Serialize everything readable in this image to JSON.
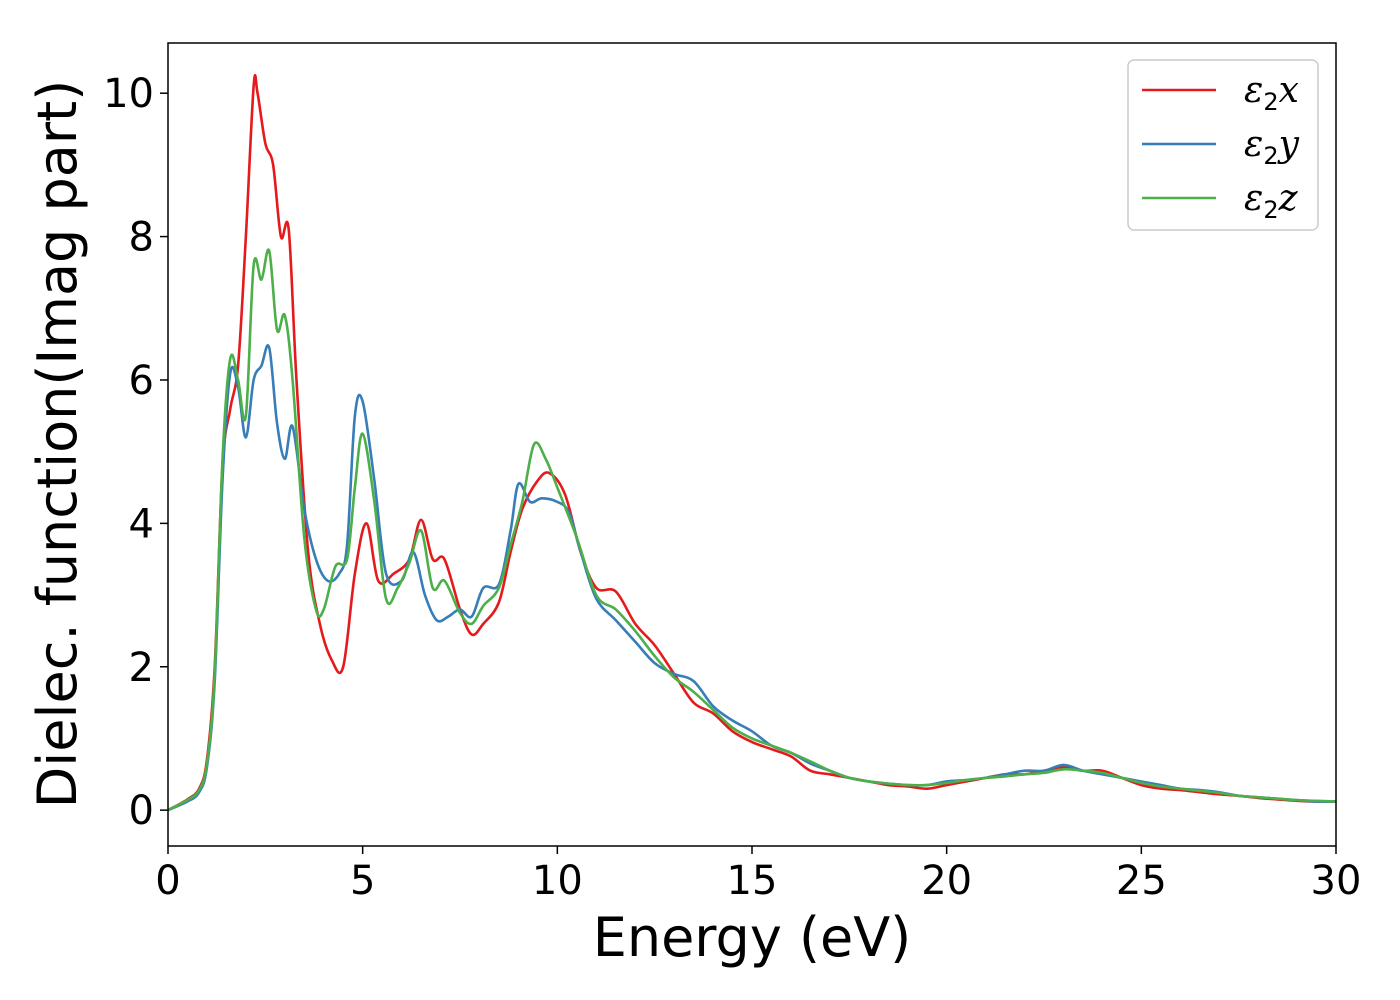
{
  "chart_data": {
    "type": "line",
    "xlabel": "Energy (eV)",
    "ylabel": "Dielec. function(Imag part)",
    "xlim": [
      0,
      30
    ],
    "ylim": [
      -0.5,
      10.7
    ],
    "xticks": [
      0,
      5,
      10,
      15,
      20,
      25,
      30
    ],
    "xtick_labels": [
      "0",
      "5",
      "10",
      "15",
      "20",
      "25",
      "30"
    ],
    "yticks": [
      0,
      2,
      4,
      6,
      8,
      10
    ],
    "ytick_labels": [
      "0",
      "2",
      "4",
      "6",
      "8",
      "10"
    ],
    "grid": false,
    "legend_position": "top-right",
    "series": [
      {
        "name": "ε2x",
        "legend_main": "ε",
        "legend_sub": "2",
        "legend_var": "x",
        "color": "#e41a1c",
        "x": [
          0,
          0.5,
          0.8,
          1.0,
          1.2,
          1.4,
          1.6,
          1.8,
          2.0,
          2.2,
          2.3,
          2.5,
          2.7,
          2.9,
          3.1,
          3.3,
          3.6,
          3.9,
          4.2,
          4.5,
          4.8,
          5.1,
          5.4,
          5.8,
          6.2,
          6.5,
          6.8,
          7.1,
          7.5,
          7.8,
          8.1,
          8.5,
          8.8,
          9.1,
          9.5,
          9.8,
          10.2,
          10.6,
          11.0,
          11.5,
          12.0,
          12.5,
          13.0,
          13.5,
          14.0,
          14.5,
          15.0,
          15.5,
          16.0,
          16.5,
          17.0,
          17.5,
          18.0,
          18.5,
          19.0,
          19.5,
          20.0,
          20.5,
          21.0,
          21.5,
          22.0,
          22.5,
          23.0,
          23.5,
          24.0,
          24.5,
          25.0,
          25.5,
          26.0,
          26.5,
          27.0,
          27.5,
          28.0,
          28.5,
          29.0,
          29.5,
          30.0
        ],
        "y": [
          0.0,
          0.15,
          0.3,
          0.7,
          2.0,
          4.8,
          5.6,
          6.2,
          8.0,
          10.1,
          10.0,
          9.3,
          9.0,
          8.0,
          8.1,
          6.0,
          3.6,
          2.6,
          2.1,
          2.0,
          3.3,
          4.0,
          3.2,
          3.3,
          3.5,
          4.05,
          3.5,
          3.5,
          2.8,
          2.45,
          2.6,
          2.9,
          3.6,
          4.2,
          4.6,
          4.7,
          4.4,
          3.6,
          3.1,
          3.05,
          2.6,
          2.3,
          1.9,
          1.5,
          1.35,
          1.1,
          0.95,
          0.85,
          0.75,
          0.55,
          0.5,
          0.45,
          0.4,
          0.35,
          0.33,
          0.3,
          0.35,
          0.4,
          0.45,
          0.5,
          0.5,
          0.55,
          0.6,
          0.55,
          0.55,
          0.45,
          0.35,
          0.3,
          0.28,
          0.25,
          0.22,
          0.2,
          0.17,
          0.15,
          0.13,
          0.12,
          0.12
        ]
      },
      {
        "name": "ε2y",
        "legend_main": "ε",
        "legend_sub": "2",
        "legend_var": "y",
        "color": "#377eb8",
        "x": [
          0,
          0.5,
          0.8,
          1.0,
          1.2,
          1.4,
          1.6,
          1.8,
          2.0,
          2.2,
          2.4,
          2.6,
          2.8,
          3.0,
          3.2,
          3.5,
          3.8,
          4.1,
          4.4,
          4.6,
          4.8,
          5.0,
          5.3,
          5.6,
          6.0,
          6.3,
          6.6,
          6.9,
          7.2,
          7.5,
          7.8,
          8.1,
          8.5,
          8.8,
          9.0,
          9.3,
          9.6,
          10.0,
          10.3,
          10.6,
          11.0,
          11.5,
          12.0,
          12.5,
          13.0,
          13.5,
          14.0,
          14.5,
          15.0,
          15.5,
          16.0,
          16.5,
          17.0,
          17.5,
          18.0,
          18.5,
          19.0,
          19.5,
          20.0,
          20.5,
          21.0,
          21.5,
          22.0,
          22.5,
          23.0,
          23.5,
          24.0,
          24.5,
          25.0,
          25.5,
          26.0,
          26.5,
          27.0,
          27.5,
          28.0,
          28.5,
          29.0,
          29.5,
          30.0
        ],
        "y": [
          0.0,
          0.12,
          0.25,
          0.6,
          1.8,
          4.6,
          6.1,
          5.9,
          5.2,
          6.0,
          6.2,
          6.45,
          5.4,
          4.9,
          5.35,
          4.2,
          3.5,
          3.2,
          3.3,
          3.7,
          5.5,
          5.7,
          4.6,
          3.3,
          3.2,
          3.6,
          3.0,
          2.65,
          2.7,
          2.8,
          2.7,
          3.1,
          3.15,
          3.9,
          4.55,
          4.3,
          4.35,
          4.3,
          4.15,
          3.6,
          2.95,
          2.65,
          2.35,
          2.05,
          1.9,
          1.8,
          1.45,
          1.25,
          1.1,
          0.9,
          0.8,
          0.65,
          0.55,
          0.45,
          0.4,
          0.37,
          0.35,
          0.35,
          0.4,
          0.42,
          0.45,
          0.5,
          0.55,
          0.55,
          0.63,
          0.55,
          0.5,
          0.45,
          0.4,
          0.35,
          0.3,
          0.28,
          0.25,
          0.2,
          0.18,
          0.16,
          0.14,
          0.12,
          0.12
        ]
      },
      {
        "name": "ε2z",
        "legend_main": "ε",
        "legend_sub": "2",
        "legend_var": "z",
        "color": "#4daf4a",
        "x": [
          0,
          0.5,
          0.8,
          1.0,
          1.2,
          1.4,
          1.6,
          1.8,
          2.0,
          2.2,
          2.4,
          2.6,
          2.8,
          3.0,
          3.2,
          3.5,
          3.8,
          4.0,
          4.3,
          4.6,
          4.8,
          5.0,
          5.3,
          5.6,
          5.9,
          6.2,
          6.5,
          6.8,
          7.1,
          7.5,
          7.8,
          8.1,
          8.5,
          8.8,
          9.1,
          9.4,
          9.7,
          10.0,
          10.5,
          11.0,
          11.5,
          12.0,
          12.5,
          13.0,
          13.5,
          14.0,
          14.5,
          15.0,
          15.5,
          16.0,
          16.5,
          17.0,
          17.5,
          18.0,
          18.5,
          19.0,
          19.5,
          20.0,
          20.5,
          21.0,
          21.5,
          22.0,
          22.5,
          23.0,
          23.5,
          24.0,
          24.5,
          25.0,
          25.5,
          26.0,
          26.5,
          27.0,
          27.5,
          28.0,
          28.5,
          29.0,
          29.5,
          30.0
        ],
        "y": [
          0.0,
          0.14,
          0.28,
          0.65,
          1.9,
          4.9,
          6.3,
          6.0,
          5.5,
          7.6,
          7.4,
          7.8,
          6.7,
          6.9,
          6.0,
          3.8,
          2.8,
          2.8,
          3.4,
          3.5,
          4.5,
          5.25,
          4.3,
          2.95,
          3.1,
          3.45,
          3.9,
          3.1,
          3.2,
          2.75,
          2.6,
          2.85,
          3.1,
          3.7,
          4.3,
          5.1,
          4.9,
          4.5,
          3.8,
          3.0,
          2.8,
          2.5,
          2.15,
          1.85,
          1.65,
          1.4,
          1.15,
          1.0,
          0.9,
          0.8,
          0.68,
          0.55,
          0.45,
          0.4,
          0.37,
          0.35,
          0.35,
          0.38,
          0.42,
          0.45,
          0.47,
          0.5,
          0.52,
          0.57,
          0.55,
          0.52,
          0.45,
          0.38,
          0.33,
          0.3,
          0.27,
          0.24,
          0.2,
          0.18,
          0.16,
          0.14,
          0.13,
          0.12
        ]
      }
    ]
  }
}
